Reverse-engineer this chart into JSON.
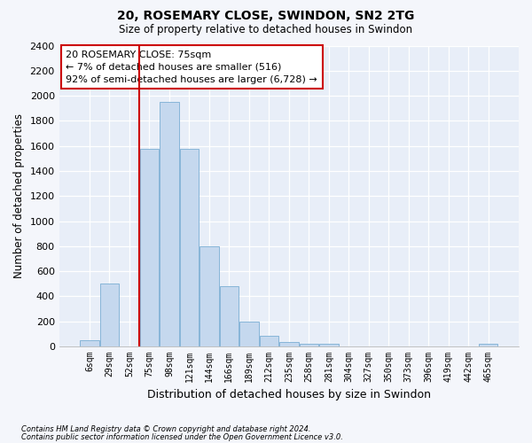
{
  "title": "20, ROSEMARY CLOSE, SWINDON, SN2 2TG",
  "subtitle": "Size of property relative to detached houses in Swindon",
  "xlabel": "Distribution of detached houses by size in Swindon",
  "ylabel": "Number of detached properties",
  "categories": [
    "6sqm",
    "29sqm",
    "52sqm",
    "75sqm",
    "98sqm",
    "121sqm",
    "144sqm",
    "166sqm",
    "189sqm",
    "212sqm",
    "235sqm",
    "258sqm",
    "281sqm",
    "304sqm",
    "327sqm",
    "350sqm",
    "373sqm",
    "396sqm",
    "419sqm",
    "442sqm",
    "465sqm"
  ],
  "values": [
    50,
    500,
    0,
    1580,
    1950,
    1580,
    800,
    480,
    200,
    85,
    35,
    25,
    20,
    0,
    0,
    0,
    0,
    0,
    0,
    0,
    20
  ],
  "bar_color": "#c5d8ee",
  "bar_edge_color": "#7aaed4",
  "property_line_index": 3,
  "property_line_color": "#cc0000",
  "annotation_line1": "20 ROSEMARY CLOSE: 75sqm",
  "annotation_line2": "← 7% of detached houses are smaller (516)",
  "annotation_line3": "92% of semi-detached houses are larger (6,728) →",
  "footnote1": "Contains HM Land Registry data © Crown copyright and database right 2024.",
  "footnote2": "Contains public sector information licensed under the Open Government Licence v3.0.",
  "ylim_max": 2400,
  "ytick_step": 200,
  "bg_color": "#f4f6fb",
  "plot_bg_color": "#e8eef8"
}
